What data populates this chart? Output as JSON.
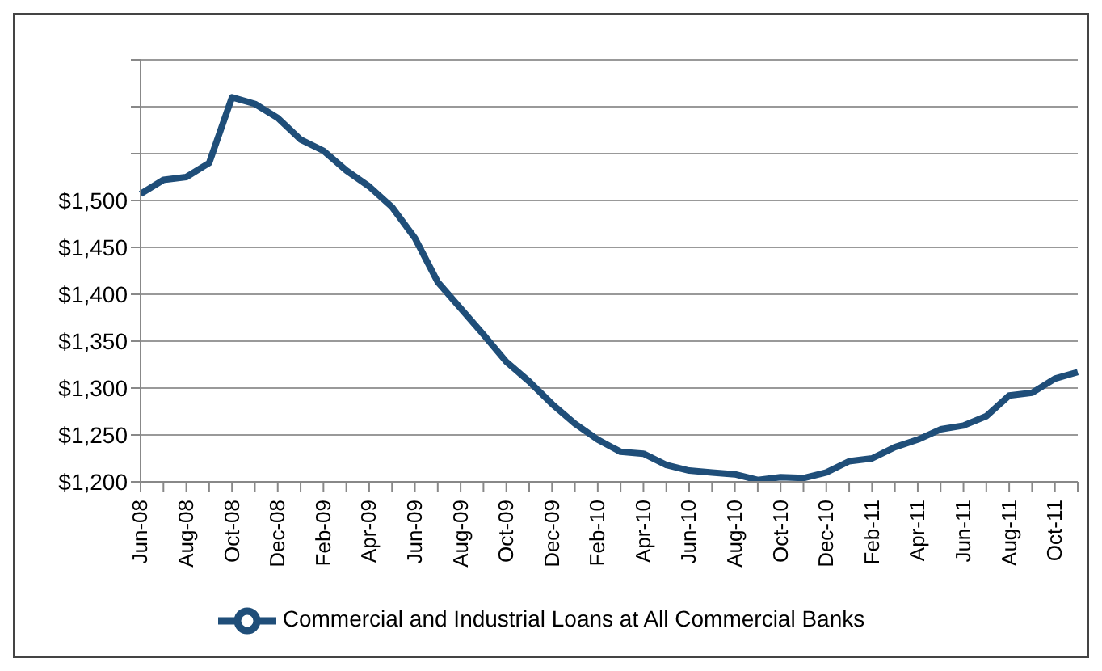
{
  "chart_data": {
    "type": "line",
    "categories": [
      "Jun-08",
      null,
      "Aug-08",
      null,
      "Oct-08",
      null,
      "Dec-08",
      null,
      "Feb-09",
      null,
      "Apr-09",
      null,
      "Jun-09",
      null,
      "Aug-09",
      null,
      "Oct-09",
      null,
      "Dec-09",
      null,
      "Feb-10",
      null,
      "Apr-10",
      null,
      "Jun-10",
      null,
      "Aug-10",
      null,
      "Oct-10",
      null,
      "Dec-10",
      null,
      "Feb-11",
      null,
      "Apr-11",
      null,
      "Jun-11",
      null,
      "Aug-11",
      null,
      "Oct-11",
      null
    ],
    "series": [
      {
        "name": "Commercial and Industrial Loans at All Commercial Banks",
        "color": "#1f4e79",
        "values": [
          1507,
          1522,
          1525,
          1540,
          1610,
          1603,
          1588,
          1565,
          1553,
          1532,
          1515,
          1493,
          1460,
          1413,
          1385,
          1357,
          1328,
          1307,
          1283,
          1262,
          1245,
          1232,
          1230,
          1218,
          1212,
          1210,
          1208,
          1202,
          1205,
          1204,
          1210,
          1222,
          1225,
          1237,
          1245,
          1256,
          1260,
          1270,
          1292,
          1295,
          1310,
          1317
        ]
      }
    ],
    "ylim": [
      1200,
      1650
    ],
    "yticks": [
      {
        "value": 1200,
        "label": "$1,200"
      },
      {
        "value": 1250,
        "label": "$1,250"
      },
      {
        "value": 1300,
        "label": "$1,300"
      },
      {
        "value": 1350,
        "label": "$1,350"
      },
      {
        "value": 1400,
        "label": "$1,400"
      },
      {
        "value": 1450,
        "label": "$1,450"
      },
      {
        "value": 1500,
        "label": "$1,500"
      },
      {
        "value": 1550,
        "label": null
      },
      {
        "value": 1600,
        "label": null
      },
      {
        "value": 1650,
        "label": null
      }
    ],
    "grid": "y",
    "legend": "bottom",
    "marker": "none",
    "line_style": "solid"
  }
}
